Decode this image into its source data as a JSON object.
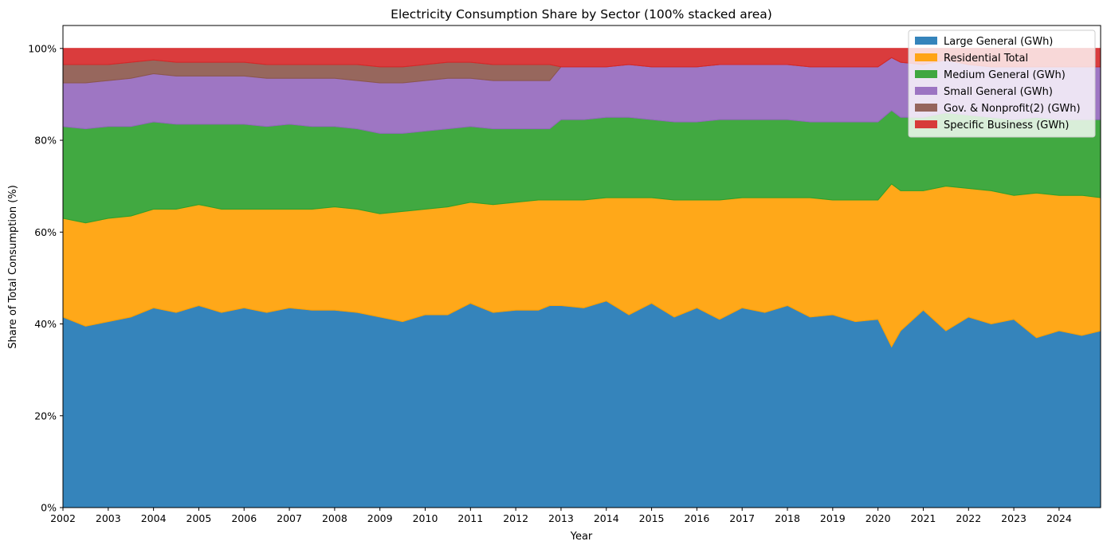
{
  "chart_data": {
    "type": "area",
    "stacking": "percent",
    "title": "Electricity Consumption Share by Sector (100% stacked area)",
    "xlabel": "Year",
    "ylabel": "Share of Total Consumption (%)",
    "xlim": [
      2002.0,
      2024.917
    ],
    "ylim": [
      0,
      105
    ],
    "x_ticks": [
      2002,
      2003,
      2004,
      2005,
      2006,
      2007,
      2008,
      2009,
      2010,
      2011,
      2012,
      2013,
      2014,
      2015,
      2016,
      2017,
      2018,
      2019,
      2020,
      2021,
      2022,
      2023,
      2024
    ],
    "y_ticks": [
      0,
      20,
      40,
      60,
      80,
      100
    ],
    "y_tick_labels": [
      "0%",
      "20%",
      "40%",
      "60%",
      "80%",
      "100%"
    ],
    "grid": false,
    "legend_position": "top-right",
    "x": [
      2002.0,
      2002.5,
      2003.0,
      2003.5,
      2004.0,
      2004.5,
      2005.0,
      2005.5,
      2006.0,
      2006.5,
      2007.0,
      2007.5,
      2008.0,
      2008.5,
      2009.0,
      2009.5,
      2010.0,
      2010.5,
      2011.0,
      2011.5,
      2012.0,
      2012.5,
      2012.75,
      2013.0,
      2013.5,
      2014.0,
      2014.5,
      2015.0,
      2015.5,
      2016.0,
      2016.5,
      2017.0,
      2017.5,
      2018.0,
      2018.5,
      2019.0,
      2019.5,
      2020.0,
      2020.3,
      2020.5,
      2021.0,
      2021.5,
      2022.0,
      2022.5,
      2023.0,
      2023.5,
      2024.0,
      2024.5,
      2024.917
    ],
    "series": [
      {
        "name": "Large General (GWh)",
        "color": "#1f77b4",
        "values": [
          41.5,
          39.5,
          40.5,
          41.5,
          43.5,
          42.5,
          44.0,
          42.5,
          43.5,
          42.5,
          43.5,
          43.0,
          43.0,
          42.5,
          41.5,
          40.5,
          42.0,
          42.0,
          44.5,
          42.5,
          43.0,
          43.0,
          44.0,
          44.0,
          43.5,
          45.0,
          42.0,
          44.5,
          41.5,
          43.5,
          41.0,
          43.5,
          42.5,
          44.0,
          41.5,
          42.0,
          40.5,
          41.0,
          35.0,
          38.5,
          43.0,
          38.5,
          41.5,
          40.0,
          41.0,
          37.0,
          38.5,
          37.5,
          38.5
        ]
      },
      {
        "name": "Residential Total",
        "color": "#ff9f00",
        "values": [
          21.5,
          22.5,
          22.5,
          22.0,
          21.5,
          22.5,
          22.0,
          22.5,
          21.5,
          22.5,
          21.5,
          22.0,
          22.5,
          22.5,
          22.5,
          24.0,
          23.0,
          23.5,
          22.0,
          23.5,
          23.5,
          24.0,
          23.0,
          23.0,
          23.5,
          22.5,
          25.5,
          23.0,
          25.5,
          23.5,
          26.0,
          24.0,
          25.0,
          23.5,
          26.0,
          25.0,
          26.5,
          26.0,
          35.5,
          30.5,
          26.0,
          31.5,
          28.0,
          29.0,
          27.0,
          31.5,
          29.5,
          30.5,
          29.0
        ]
      },
      {
        "name": "Medium General (GWh)",
        "color": "#2ca02c",
        "values": [
          20.0,
          20.5,
          20.0,
          19.5,
          19.0,
          18.5,
          17.5,
          18.5,
          18.5,
          18.0,
          18.5,
          18.0,
          17.5,
          17.5,
          17.5,
          17.0,
          17.0,
          17.0,
          16.5,
          16.5,
          16.0,
          15.5,
          15.5,
          17.5,
          17.5,
          17.5,
          17.5,
          17.0,
          17.0,
          17.0,
          17.5,
          17.0,
          17.0,
          17.0,
          16.5,
          17.0,
          17.0,
          17.0,
          16.0,
          16.0,
          16.0,
          16.0,
          16.0,
          16.0,
          16.5,
          16.5,
          16.5,
          16.5,
          17.0
        ]
      },
      {
        "name": "Small General (GWh)",
        "color": "#9467bd",
        "values": [
          9.5,
          10.0,
          10.0,
          10.5,
          10.5,
          10.5,
          10.5,
          10.5,
          10.5,
          10.5,
          10.0,
          10.5,
          10.5,
          10.5,
          11.0,
          11.0,
          11.0,
          11.0,
          10.5,
          10.5,
          10.5,
          10.5,
          10.5,
          11.5,
          11.5,
          11.0,
          11.5,
          11.5,
          12.0,
          12.0,
          12.0,
          12.0,
          12.0,
          12.0,
          12.0,
          12.0,
          12.0,
          12.0,
          11.5,
          12.0,
          11.5,
          11.5,
          11.0,
          11.0,
          11.5,
          11.0,
          11.5,
          11.5,
          11.5
        ]
      },
      {
        "name": "Gov. & Nonprofit(2) (GWh)",
        "color": "#8c564b",
        "values": [
          4.0,
          4.0,
          3.5,
          3.5,
          3.0,
          3.0,
          3.0,
          3.0,
          3.0,
          3.0,
          3.0,
          3.0,
          3.0,
          3.5,
          3.5,
          3.5,
          3.5,
          3.5,
          3.5,
          3.5,
          3.5,
          3.5,
          3.5,
          0,
          0,
          0,
          0,
          0,
          0,
          0,
          0,
          0,
          0,
          0,
          0,
          0,
          0,
          0,
          0,
          0,
          0,
          0,
          0,
          0,
          0,
          0,
          0,
          0,
          0
        ]
      },
      {
        "name": "Specific Business (GWh)",
        "color": "#d62728",
        "values": [
          3.5,
          3.5,
          3.5,
          3.0,
          2.5,
          3.0,
          3.0,
          3.0,
          3.0,
          3.5,
          3.5,
          3.5,
          3.5,
          3.5,
          4.0,
          4.0,
          3.5,
          3.0,
          3.0,
          3.5,
          3.5,
          3.5,
          3.5,
          4.0,
          4.0,
          4.0,
          3.5,
          4.0,
          4.0,
          4.0,
          3.5,
          3.5,
          3.5,
          3.5,
          4.0,
          4.0,
          4.0,
          4.0,
          2.0,
          3.0,
          3.5,
          2.5,
          3.5,
          4.0,
          4.0,
          4.0,
          4.0,
          4.0,
          4.0
        ]
      }
    ]
  }
}
